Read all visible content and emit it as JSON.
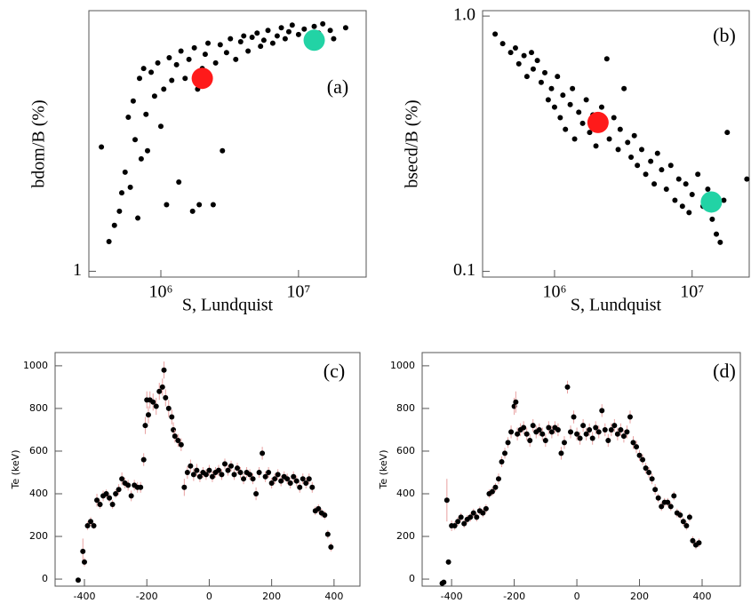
{
  "chart_data": [
    {
      "type": "scatter",
      "label": "(a)",
      "xlabel": "S, Lundquist",
      "ylabel": "bdom/B (%)",
      "xscale": "log",
      "yscale": "log",
      "xlim": [
        300000,
        31000000
      ],
      "ylim": [
        0.95,
        10
      ],
      "xticks": [
        {
          "value": 1000000,
          "label": "10⁶"
        },
        {
          "value": 10000000,
          "label": "10⁷"
        }
      ],
      "yticks": [
        1
      ],
      "series": [
        {
          "color": "#000000",
          "marker_size": 3,
          "x": [
            370000,
            420000,
            460000,
            500000,
            520000,
            550000,
            580000,
            600000,
            630000,
            650000,
            680000,
            700000,
            720000,
            750000,
            780000,
            800000,
            850000,
            900000,
            950000,
            1000000,
            1050000,
            1100000,
            1150000,
            1200000,
            1300000,
            1350000,
            1400000,
            1500000,
            1600000,
            1700000,
            1750000,
            1850000,
            1900000,
            2000000,
            2100000,
            2200000,
            2400000,
            2500000,
            2700000,
            2800000,
            3000000,
            3200000,
            3500000,
            3800000,
            4000000,
            4300000,
            4600000,
            5000000,
            5300000,
            5600000,
            6000000,
            6500000,
            7000000,
            7500000,
            8000000,
            8500000,
            9000000,
            10000000,
            11000000,
            12000000,
            13000000,
            14000000,
            15000000,
            17000000,
            18000000,
            22000000
          ],
          "values": [
            3.0,
            1.3,
            1.5,
            1.7,
            2.0,
            2.4,
            3.9,
            2.1,
            4.5,
            3.2,
            1.6,
            5.5,
            2.7,
            6.0,
            4.0,
            2.9,
            5.8,
            4.7,
            6.3,
            3.6,
            5.0,
            1.8,
            6.6,
            5.4,
            6.2,
            2.2,
            7.0,
            5.5,
            6.5,
            1.7,
            7.2,
            5.0,
            1.8,
            6.0,
            6.8,
            7.5,
            1.8,
            6.3,
            7.4,
            2.9,
            6.9,
            7.8,
            6.5,
            7.6,
            8.0,
            7.0,
            7.9,
            8.2,
            7.3,
            7.7,
            8.4,
            7.5,
            8.0,
            8.6,
            7.8,
            8.3,
            8.8,
            8.1,
            8.5,
            7.9,
            8.7,
            8.2,
            8.9,
            8.4,
            7.8,
            8.6
          ]
        },
        {
          "color": "#ff1a1a",
          "marker_size": 12,
          "x": [
            2000000
          ],
          "values": [
            5.5
          ]
        },
        {
          "color": "#22d3a5",
          "marker_size": 12,
          "x": [
            13000000
          ],
          "values": [
            7.7
          ]
        }
      ]
    },
    {
      "type": "scatter",
      "label": "(b)",
      "xlabel": "S, Lundquist",
      "ylabel": "bsecd/B (%)",
      "xscale": "log",
      "yscale": "log",
      "xlim": [
        300000,
        26000000
      ],
      "ylim": [
        0.095,
        1.05
      ],
      "xticks": [
        {
          "value": 1000000,
          "label": "10⁶"
        },
        {
          "value": 10000000,
          "label": "10⁷"
        }
      ],
      "yticks": [
        {
          "value": 1,
          "label": "1.0"
        },
        0.1
      ],
      "series": [
        {
          "color": "#000000",
          "marker_size": 3,
          "x": [
            370000,
            420000,
            480000,
            520000,
            550000,
            600000,
            630000,
            680000,
            700000,
            750000,
            800000,
            850000,
            900000,
            950000,
            1000000,
            1050000,
            1100000,
            1150000,
            1200000,
            1300000,
            1350000,
            1400000,
            1500000,
            1600000,
            1700000,
            1800000,
            1900000,
            2000000,
            2200000,
            2300000,
            2400000,
            2500000,
            2700000,
            2900000,
            3000000,
            3200000,
            3400000,
            3600000,
            3800000,
            4000000,
            4300000,
            4600000,
            5000000,
            5300000,
            5600000,
            6000000,
            6500000,
            7000000,
            7500000,
            8000000,
            8500000,
            9000000,
            9500000,
            10000000,
            11000000,
            12000000,
            13000000,
            14000000,
            15000000,
            16000000,
            17000000,
            18000000,
            25000000
          ],
          "values": [
            0.85,
            0.78,
            0.72,
            0.75,
            0.65,
            0.7,
            0.58,
            0.72,
            0.62,
            0.67,
            0.55,
            0.6,
            0.47,
            0.52,
            0.44,
            0.58,
            0.4,
            0.49,
            0.36,
            0.45,
            0.52,
            0.33,
            0.42,
            0.38,
            0.47,
            0.35,
            0.41,
            0.31,
            0.44,
            0.37,
            0.68,
            0.33,
            0.4,
            0.3,
            0.36,
            0.52,
            0.32,
            0.28,
            0.34,
            0.26,
            0.3,
            0.24,
            0.27,
            0.22,
            0.29,
            0.25,
            0.21,
            0.26,
            0.19,
            0.23,
            0.18,
            0.22,
            0.17,
            0.2,
            0.24,
            0.18,
            0.21,
            0.16,
            0.14,
            0.13,
            0.19,
            0.35,
            0.23
          ]
        },
        {
          "color": "#ff1a1a",
          "marker_size": 12,
          "x": [
            2070000
          ],
          "values": [
            0.383
          ]
        },
        {
          "color": "#22d3a5",
          "marker_size": 12,
          "x": [
            13800000
          ],
          "values": [
            0.187
          ]
        }
      ]
    },
    {
      "type": "errorbar",
      "label": "(c)",
      "ylabel": "Te (keV)",
      "xlim": [
        -494,
        483
      ],
      "ylim": [
        -33,
        1062
      ],
      "xticks": [
        -400,
        -200,
        0,
        200,
        400
      ],
      "yticks": [
        0,
        200,
        400,
        600,
        800,
        1000
      ],
      "series": [
        {
          "color": "#000000",
          "error_color": "#e8a0a0",
          "marker_size": 3,
          "x": [
            -420,
            -405,
            -400,
            -390,
            -380,
            -370,
            -360,
            -350,
            -340,
            -330,
            -320,
            -310,
            -300,
            -290,
            -280,
            -270,
            -260,
            -250,
            -240,
            -230,
            -220,
            -210,
            -205,
            -200,
            -195,
            -190,
            -180,
            -170,
            -160,
            -150,
            -145,
            -140,
            -130,
            -120,
            -115,
            -110,
            -100,
            -90,
            -80,
            -70,
            -60,
            -50,
            -40,
            -30,
            -20,
            -10,
            0,
            10,
            20,
            30,
            40,
            50,
            60,
            70,
            80,
            90,
            100,
            110,
            120,
            130,
            140,
            150,
            160,
            170,
            180,
            190,
            200,
            210,
            220,
            230,
            240,
            250,
            260,
            270,
            280,
            290,
            300,
            310,
            320,
            330,
            340,
            350,
            360,
            370,
            380,
            390
          ],
          "values": [
            -5,
            130,
            80,
            250,
            270,
            250,
            370,
            350,
            390,
            400,
            380,
            350,
            400,
            420,
            470,
            450,
            440,
            390,
            440,
            430,
            430,
            560,
            720,
            840,
            770,
            840,
            830,
            810,
            880,
            900,
            980,
            850,
            800,
            760,
            700,
            670,
            650,
            630,
            430,
            500,
            530,
            490,
            510,
            480,
            500,
            490,
            510,
            480,
            500,
            510,
            490,
            540,
            510,
            530,
            490,
            520,
            500,
            470,
            500,
            490,
            470,
            400,
            500,
            590,
            480,
            500,
            450,
            470,
            490,
            460,
            480,
            470,
            450,
            480,
            460,
            430,
            470,
            450,
            470,
            430,
            320,
            330,
            310,
            300,
            210,
            150
          ],
          "errors": [
            5,
            60,
            20,
            20,
            20,
            15,
            30,
            20,
            25,
            20,
            20,
            20,
            20,
            25,
            30,
            25,
            25,
            25,
            25,
            25,
            25,
            30,
            40,
            40,
            40,
            40,
            40,
            40,
            40,
            40,
            40,
            40,
            40,
            35,
            35,
            30,
            30,
            30,
            40,
            30,
            30,
            30,
            30,
            25,
            25,
            25,
            25,
            25,
            25,
            25,
            25,
            25,
            25,
            25,
            25,
            25,
            25,
            25,
            25,
            25,
            25,
            30,
            25,
            30,
            25,
            25,
            25,
            25,
            25,
            25,
            25,
            25,
            25,
            25,
            25,
            25,
            25,
            25,
            25,
            25,
            20,
            20,
            20,
            20,
            20,
            20
          ]
        }
      ]
    },
    {
      "type": "errorbar",
      "label": "(d)",
      "ylabel": "Te (keV)",
      "xlim": [
        -494,
        522
      ],
      "ylim": [
        -33,
        1062
      ],
      "xticks": [
        -400,
        -200,
        0,
        200,
        400
      ],
      "yticks": [
        0,
        200,
        400,
        600,
        800,
        1000
      ],
      "series": [
        {
          "color": "#000000",
          "error_color": "#e8a0a0",
          "marker_size": 3,
          "x": [
            -430,
            -425,
            -415,
            -410,
            -400,
            -390,
            -380,
            -370,
            -360,
            -350,
            -340,
            -330,
            -320,
            -310,
            -300,
            -290,
            -280,
            -270,
            -260,
            -250,
            -240,
            -230,
            -220,
            -210,
            -200,
            -195,
            -190,
            -180,
            -170,
            -160,
            -150,
            -140,
            -130,
            -120,
            -110,
            -100,
            -90,
            -80,
            -70,
            -60,
            -50,
            -40,
            -30,
            -20,
            -10,
            0,
            10,
            20,
            30,
            40,
            50,
            60,
            70,
            80,
            90,
            100,
            110,
            120,
            130,
            140,
            150,
            160,
            170,
            180,
            190,
            200,
            210,
            220,
            230,
            240,
            250,
            260,
            270,
            280,
            290,
            300,
            310,
            320,
            330,
            340,
            350,
            360,
            370,
            380,
            390
          ],
          "values": [
            -20,
            -15,
            370,
            80,
            250,
            250,
            270,
            290,
            260,
            280,
            290,
            310,
            290,
            320,
            310,
            330,
            400,
            410,
            430,
            470,
            550,
            590,
            640,
            690,
            810,
            830,
            680,
            700,
            710,
            680,
            650,
            720,
            690,
            700,
            680,
            650,
            710,
            690,
            710,
            700,
            590,
            640,
            900,
            690,
            760,
            680,
            660,
            720,
            680,
            700,
            660,
            710,
            690,
            790,
            700,
            650,
            700,
            720,
            680,
            700,
            670,
            690,
            760,
            640,
            620,
            580,
            560,
            520,
            500,
            470,
            420,
            380,
            340,
            360,
            360,
            340,
            390,
            310,
            300,
            270,
            250,
            290,
            180,
            160,
            170
          ],
          "errors": [
            0,
            0,
            100,
            10,
            25,
            20,
            20,
            20,
            20,
            20,
            20,
            20,
            20,
            20,
            20,
            20,
            20,
            20,
            20,
            25,
            25,
            25,
            25,
            30,
            40,
            50,
            30,
            30,
            30,
            30,
            30,
            30,
            30,
            30,
            30,
            30,
            30,
            30,
            30,
            30,
            30,
            30,
            30,
            30,
            30,
            30,
            30,
            30,
            30,
            30,
            30,
            30,
            30,
            30,
            30,
            30,
            30,
            30,
            30,
            30,
            30,
            30,
            30,
            30,
            30,
            25,
            25,
            25,
            25,
            25,
            25,
            20,
            20,
            20,
            20,
            20,
            20,
            20,
            20,
            20,
            20,
            20,
            20,
            20,
            20
          ]
        }
      ]
    }
  ]
}
